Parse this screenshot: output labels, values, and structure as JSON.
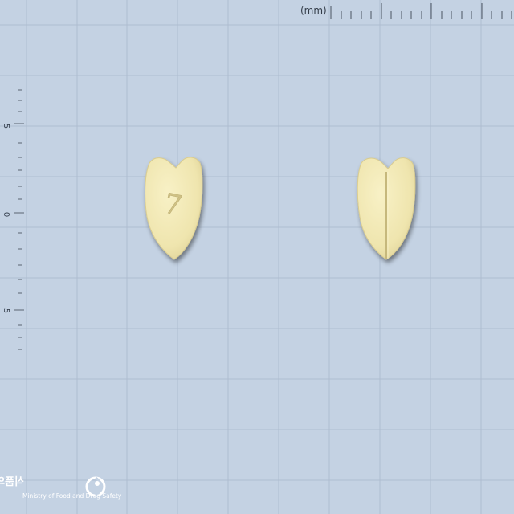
{
  "ruler": {
    "unit_label": "(mm)"
  },
  "vertical_scale": {
    "labels": [
      "5",
      "0",
      "5"
    ]
  },
  "background_color": "#c4d2e3",
  "grid_color": "#a9b9cc",
  "pill": {
    "color": "#f1e8b4",
    "front_imprint": "7",
    "back_feature": "score-line"
  },
  "watermark": {
    "korean_name": "식품의약품안전처",
    "english_name": "Ministry of Food and Drug Safety",
    "logo_icon": "mfds-swirl-icon"
  }
}
